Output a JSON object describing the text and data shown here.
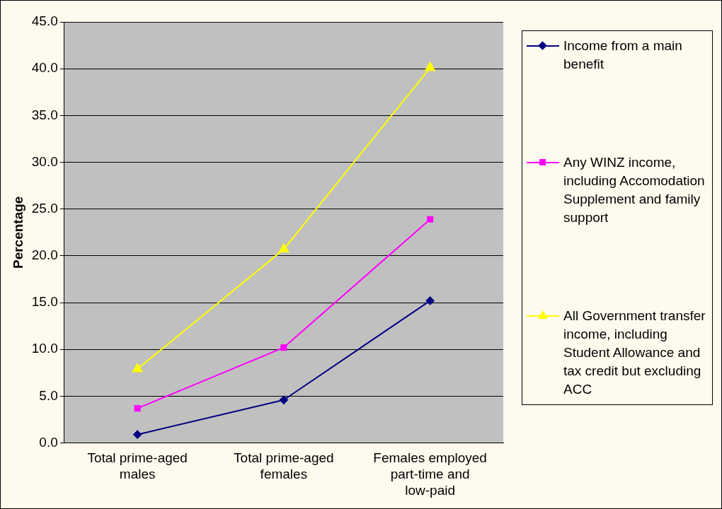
{
  "chart_data": {
    "type": "line",
    "ylabel": "Percentage",
    "categories": [
      "Total prime-aged males",
      "Total prime-aged females",
      "Females employed part-time and low-paid"
    ],
    "series": [
      {
        "name": "Income from a main benefit",
        "color": "#000080",
        "marker": "diamond",
        "values": [
          0.9,
          4.6,
          15.2
        ]
      },
      {
        "name": "Any WINZ income, including Accomodation Supplement and family support",
        "color": "#ff00ff",
        "marker": "square",
        "values": [
          3.7,
          10.2,
          23.9
        ]
      },
      {
        "name": "All Government transfer income, including Student Allowance and tax credit but excluding ACC",
        "color": "#ffff00",
        "marker": "triangle",
        "values": [
          7.9,
          20.7,
          40.1
        ]
      }
    ],
    "ylim": [
      0,
      45
    ],
    "yticks": [
      {
        "value": 0,
        "label": "0.0"
      },
      {
        "value": 5,
        "label": "5.0"
      },
      {
        "value": 10,
        "label": "10.0"
      },
      {
        "value": 15,
        "label": "15.0"
      },
      {
        "value": 20,
        "label": "20.0"
      },
      {
        "value": 25,
        "label": "25.0"
      },
      {
        "value": 30,
        "label": "30.0"
      },
      {
        "value": 35,
        "label": "35.0"
      },
      {
        "value": 40,
        "label": "40.0"
      },
      {
        "value": 45,
        "label": "45.0"
      }
    ],
    "grid": "y",
    "legend": "right",
    "line_style": "solid"
  }
}
